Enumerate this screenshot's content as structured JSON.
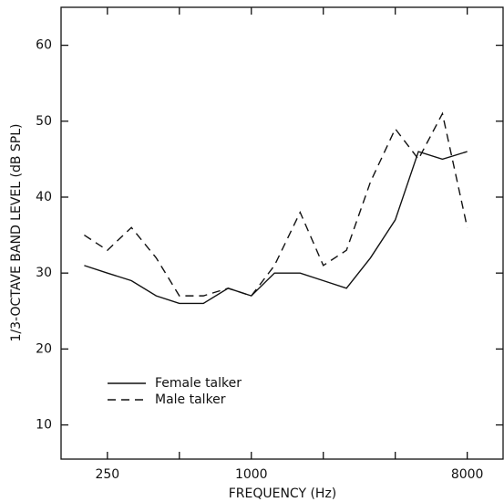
{
  "chart_data": {
    "type": "line",
    "x_label": "FREQUENCY (Hz)",
    "y_label": "1/3-OCTAVE BAND LEVEL (dB SPL)",
    "x": [
      200,
      250,
      315,
      400,
      500,
      630,
      800,
      1000,
      1250,
      1600,
      2000,
      2500,
      3150,
      4000,
      5000,
      6300,
      8000
    ],
    "series": [
      {
        "name": "Female talker",
        "color": "#111111",
        "dash": "solid",
        "values": [
          31,
          30,
          29,
          27,
          26,
          26,
          28,
          27,
          30,
          30,
          29,
          28,
          32,
          37,
          46,
          45,
          46
        ]
      },
      {
        "name": "Male talker",
        "color": "#111111",
        "dash": "dashed",
        "values": [
          35,
          33,
          36,
          32,
          27,
          27,
          28,
          27,
          31,
          38,
          31,
          33,
          42,
          49,
          45,
          51,
          36
        ]
      }
    ],
    "x_log": true,
    "xlim": [
      160,
      11300
    ],
    "xticks": [
      250,
      1000,
      8000
    ],
    "xminor_ticks": [
      500,
      2000,
      4000
    ],
    "ylim": [
      5.5,
      65
    ],
    "yticks": [
      10,
      20,
      30,
      40,
      50,
      60
    ],
    "legend": "lower-left"
  }
}
